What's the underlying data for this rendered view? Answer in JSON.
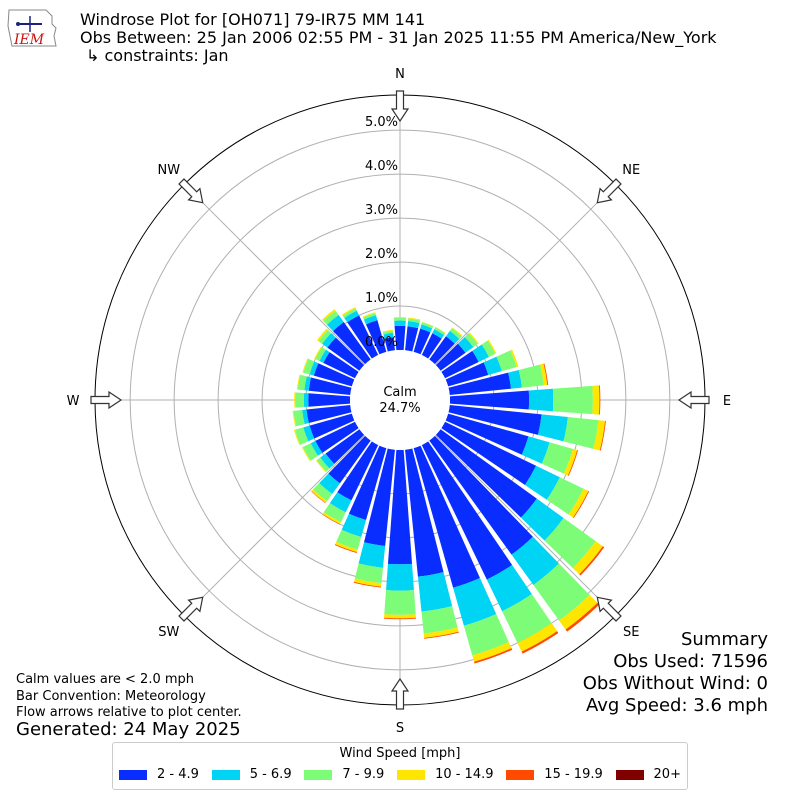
{
  "header": {
    "title_line1": "Windrose Plot for [OH071] 79-IR75 MM 141",
    "title_line2": "Obs Between: 25 Jan 2006 02:55 PM - 31 Jan 2025 11:55 PM America/New_York",
    "title_line3": "↳ constraints: Jan",
    "logo_text": "IEM"
  },
  "chart_data": {
    "type": "windrose",
    "radial_ticks": [
      "0.0%",
      "1.0%",
      "2.0%",
      "3.0%",
      "4.0%",
      "5.0%"
    ],
    "radial_tick_values": [
      0,
      1,
      2,
      3,
      4,
      5
    ],
    "r_max": 5.8,
    "directions_labels": [
      "N",
      "NE",
      "E",
      "SE",
      "S",
      "SW",
      "W",
      "NW"
    ],
    "calm_label": "Calm",
    "calm_value": "24.7%",
    "bins": [
      {
        "label": "2 - 4.9",
        "color": "#0a2dff"
      },
      {
        "label": "5 - 6.9",
        "color": "#00d4f5"
      },
      {
        "label": "7 - 9.9",
        "color": "#7dfc78"
      },
      {
        "label": "10 - 14.9",
        "color": "#ffe600"
      },
      {
        "label": "15 - 19.9",
        "color": "#ff4a00"
      },
      {
        "label": "20+",
        "color": "#800000"
      }
    ],
    "sector_directions_deg": [
      0,
      10,
      20,
      30,
      40,
      50,
      60,
      70,
      80,
      90,
      100,
      110,
      120,
      130,
      140,
      150,
      160,
      170,
      180,
      190,
      200,
      210,
      220,
      230,
      240,
      250,
      260,
      270,
      280,
      290,
      300,
      310,
      320,
      330,
      340,
      350
    ],
    "sectors": [
      [
        0.55,
        0.12,
        0.06,
        0.02,
        0,
        0
      ],
      [
        0.55,
        0.12,
        0.06,
        0.02,
        0,
        0
      ],
      [
        0.55,
        0.1,
        0.05,
        0.01,
        0,
        0
      ],
      [
        0.55,
        0.1,
        0.05,
        0.01,
        0,
        0
      ],
      [
        0.65,
        0.15,
        0.08,
        0.02,
        0,
        0
      ],
      [
        0.7,
        0.22,
        0.12,
        0.03,
        0,
        0
      ],
      [
        0.85,
        0.26,
        0.16,
        0.03,
        0,
        0
      ],
      [
        0.95,
        0.32,
        0.35,
        0.04,
        0,
        0
      ],
      [
        1.4,
        0.25,
        0.5,
        0.08,
        0.02,
        0
      ],
      [
        1.8,
        0.55,
        0.9,
        0.15,
        0.02,
        0
      ],
      [
        2.1,
        0.6,
        0.7,
        0.15,
        0.02,
        0
      ],
      [
        1.9,
        0.5,
        0.55,
        0.1,
        0.02,
        0
      ],
      [
        2.3,
        0.6,
        0.6,
        0.12,
        0.02,
        0
      ],
      [
        2.7,
        0.75,
        0.9,
        0.2,
        0.04,
        0
      ],
      [
        3.2,
        0.85,
        1.0,
        0.25,
        0.06,
        0
      ],
      [
        3.4,
        0.8,
        0.8,
        0.22,
        0.05,
        0
      ],
      [
        3.3,
        0.9,
        0.7,
        0.15,
        0.04,
        0
      ],
      [
        2.9,
        0.8,
        0.5,
        0.1,
        0.02,
        0
      ],
      [
        2.6,
        0.6,
        0.55,
        0.08,
        0.02,
        0
      ],
      [
        2.2,
        0.5,
        0.35,
        0.08,
        0.02,
        0
      ],
      [
        1.7,
        0.4,
        0.3,
        0.06,
        0.02,
        0
      ],
      [
        1.4,
        0.3,
        0.25,
        0.05,
        0.01,
        0
      ],
      [
        1.2,
        0.3,
        0.2,
        0.05,
        0.01,
        0
      ],
      [
        0.95,
        0.15,
        0.1,
        0.02,
        0,
        0
      ],
      [
        1.0,
        0.12,
        0.2,
        0.02,
        0,
        0
      ],
      [
        1.0,
        0.15,
        0.2,
        0.02,
        0,
        0
      ],
      [
        1.0,
        0.1,
        0.2,
        0.02,
        0,
        0
      ],
      [
        0.95,
        0.1,
        0.2,
        0.02,
        0,
        0
      ],
      [
        0.95,
        0.1,
        0.15,
        0.02,
        0,
        0
      ],
      [
        0.9,
        0.1,
        0.15,
        0.02,
        0,
        0
      ],
      [
        0.8,
        0.1,
        0.1,
        0.03,
        0,
        0
      ],
      [
        0.9,
        0.15,
        0.1,
        0.04,
        0,
        0
      ],
      [
        1.05,
        0.2,
        0.12,
        0.04,
        0,
        0
      ],
      [
        1.0,
        0.12,
        0.06,
        0.03,
        0,
        0
      ],
      [
        0.75,
        0.12,
        0.05,
        0.02,
        0,
        0
      ],
      [
        0.3,
        0.1,
        0.05,
        0.02,
        0,
        0
      ]
    ]
  },
  "footnotes": {
    "line1": "Calm values are < 2.0 mph",
    "line2": "Bar Convention: Meteorology",
    "line3": "Flow arrows relative to plot center.",
    "generated": "Generated: 24 May 2025"
  },
  "summary": {
    "title": "Summary",
    "obs_used": "Obs Used: 71596",
    "obs_without_wind": "Obs Without Wind: 0",
    "avg_speed": "Avg Speed: 3.6 mph"
  },
  "legend": {
    "title": "Wind Speed [mph]",
    "items": [
      "2 - 4.9",
      "5 - 6.9",
      "7 - 9.9",
      "10 - 14.9",
      "15 - 19.9",
      "20+"
    ]
  }
}
